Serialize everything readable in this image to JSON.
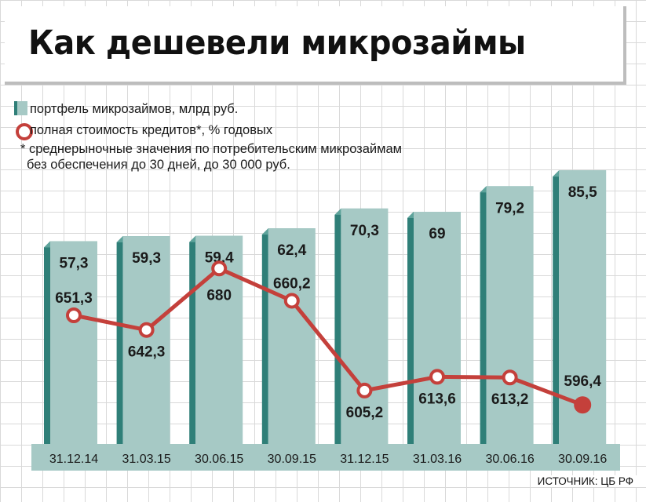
{
  "title": "Как дешевели микрозаймы",
  "legend": {
    "bar_label": "портфель микрозаймов, млрд руб.",
    "line_label": "полная стоимость кредитов*, % годовых",
    "note_line1": "* среднерыночные значения по потребительским микрозаймам",
    "note_line2": "без обеспечения до 30 дней, до 30 000 руб."
  },
  "source": "ИСТОЧНИК: ЦБ РФ",
  "colors": {
    "bar_face": "#a6c9c5",
    "bar_side": "#2f7f78",
    "bar_top": "#5ea39b",
    "line": "#c4403b",
    "axis_band": "#a6c9c5"
  },
  "chart_data": {
    "type": "bar",
    "categories": [
      "31.12.14",
      "31.03.15",
      "30.06.15",
      "30.09.15",
      "31.12.15",
      "31.03.16",
      "30.06.16",
      "30.09.16"
    ],
    "bar_labels": [
      "57,3",
      "59,3",
      "59,4",
      "62,4",
      "70,3",
      "69",
      "79,2",
      "85,5"
    ],
    "line_labels": [
      "651,3",
      "642,3",
      "680",
      "660,2",
      "605,2",
      "613,6",
      "613,2",
      "596,4"
    ],
    "series": [
      {
        "name": "портфель микрозаймов, млрд руб.",
        "type": "bar",
        "values": [
          57.3,
          59.3,
          59.4,
          62.4,
          70.3,
          69,
          79.2,
          85.5
        ]
      },
      {
        "name": "полная стоимость кредитов*, % годовых",
        "type": "line",
        "values": [
          651.3,
          642.3,
          680,
          660.2,
          605.2,
          613.6,
          613.2,
          596.4
        ]
      }
    ],
    "line_marker_last": "filled",
    "grid": true
  }
}
